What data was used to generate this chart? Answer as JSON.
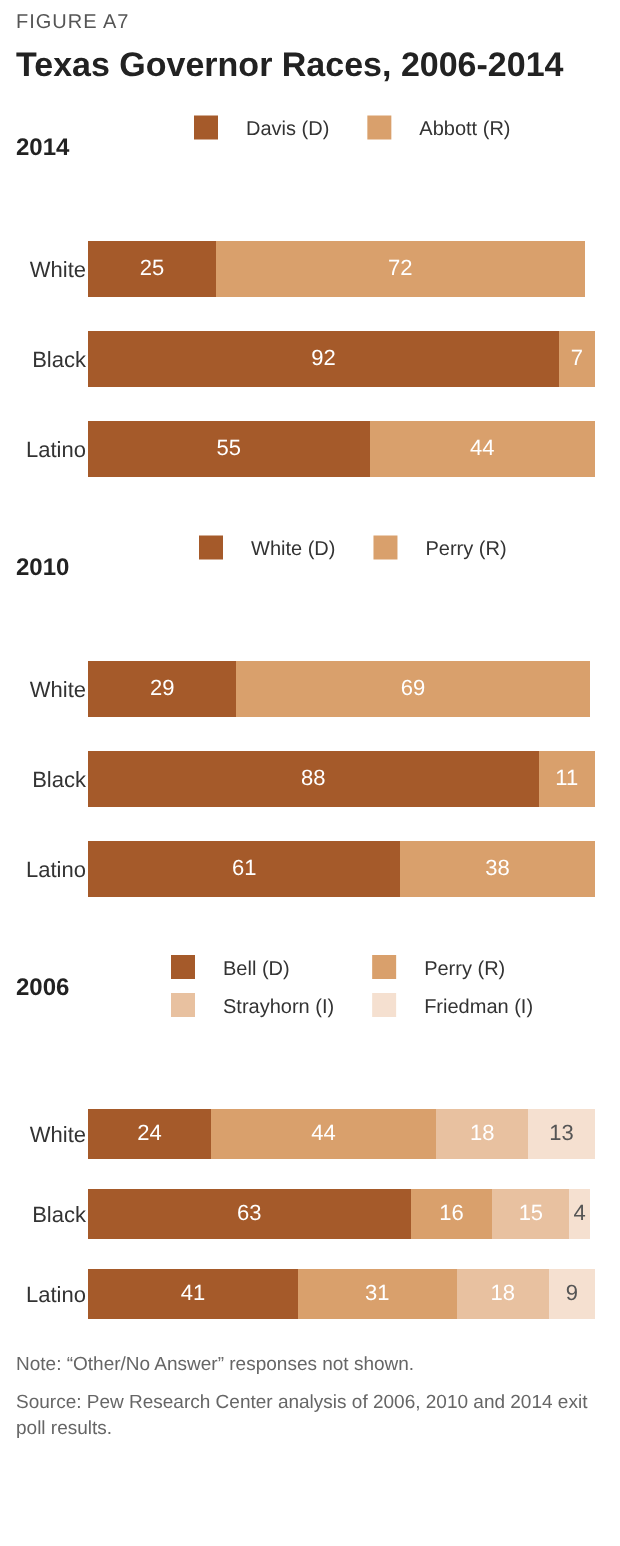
{
  "chart_data": [
    {
      "type": "other",
      "subtitle": "FIGURE A7",
      "title": "Texas Governor Races, 2006-2014"
    },
    {
      "type": "bar",
      "title": "2014",
      "orientation": "horizontal",
      "stacked": true,
      "data_labels": true,
      "legend": "top",
      "grid": false,
      "xlim": [
        0,
        100
      ],
      "tick_labels": "y",
      "categories": [
        "White",
        "Black",
        "Latino"
      ],
      "series": [
        {
          "name": "Davis (D)",
          "color": "#a55a2a",
          "values": [
            25,
            92,
            55
          ]
        },
        {
          "name": "Abbott (R)",
          "color": "#d9a06c",
          "values": [
            72,
            7,
            44
          ]
        }
      ]
    },
    {
      "type": "bar",
      "title": "2010",
      "orientation": "horizontal",
      "stacked": true,
      "data_labels": true,
      "legend": "top",
      "grid": false,
      "xlim": [
        0,
        100
      ],
      "tick_labels": "y",
      "categories": [
        "White",
        "Black",
        "Latino"
      ],
      "series": [
        {
          "name": "White (D)",
          "color": "#a55a2a",
          "values": [
            29,
            88,
            61
          ]
        },
        {
          "name": "Perry (R)",
          "color": "#d9a06c",
          "values": [
            69,
            11,
            38
          ]
        }
      ]
    },
    {
      "type": "bar",
      "title": "2006",
      "orientation": "horizontal",
      "stacked": true,
      "data_labels": true,
      "legend": "top",
      "grid": false,
      "xlim": [
        0,
        100
      ],
      "tick_labels": "y",
      "categories": [
        "White",
        "Black",
        "Latino"
      ],
      "series": [
        {
          "name": "Bell (D)",
          "color": "#a55a2a",
          "values": [
            24,
            63,
            41
          ]
        },
        {
          "name": "Perry (R)",
          "color": "#d9a06c",
          "values": [
            44,
            16,
            31
          ]
        },
        {
          "name": "Strayhorn (I)",
          "color": "#e8c1a0",
          "values": [
            18,
            15,
            18
          ]
        },
        {
          "name": "Friedman (I)",
          "color": "#f5e0d0",
          "values": [
            13,
            4,
            9
          ]
        }
      ],
      "annotations": [
        "Note: “Other/No Answer” responses not shown.",
        "Source: Pew Research Center analysis of 2006, 2010 and 2014 exit poll results."
      ]
    }
  ]
}
